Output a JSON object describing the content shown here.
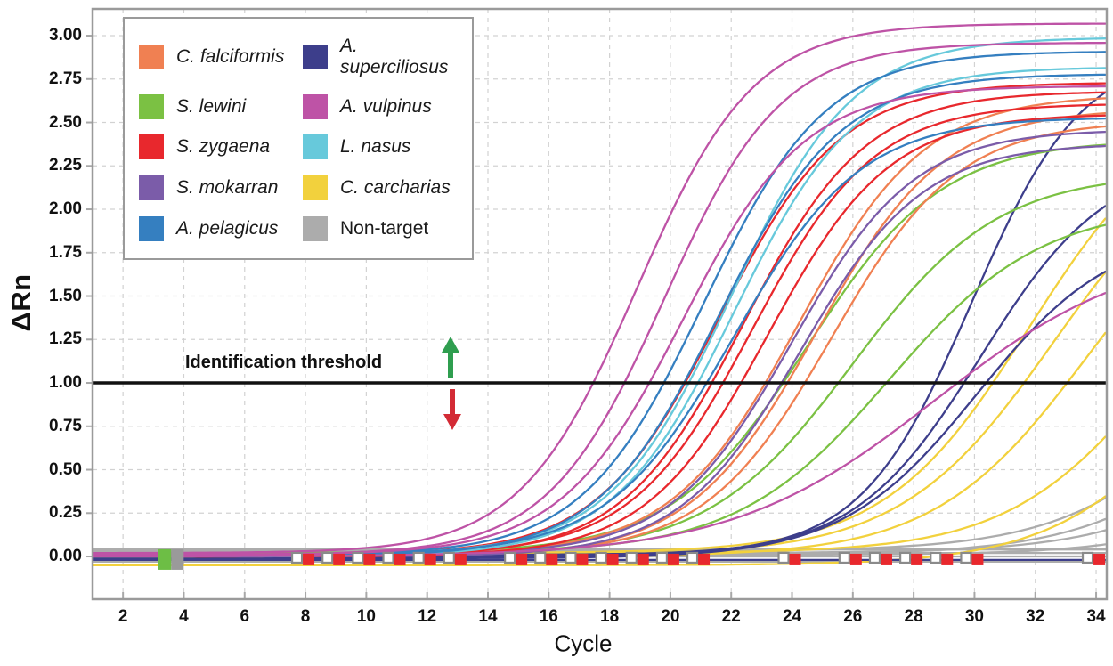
{
  "chart_data": {
    "type": "line",
    "title": "",
    "xlabel": "Cycle",
    "ylabel": "ΔRn",
    "xlim": [
      1.0,
      34.35
    ],
    "ylim": [
      -0.246,
      3.154
    ],
    "x_ticks": [
      2,
      4,
      6,
      8,
      10,
      12,
      14,
      16,
      18,
      20,
      22,
      24,
      26,
      28,
      30,
      32,
      34
    ],
    "y_ticks": [
      0.0,
      0.25,
      0.5,
      0.75,
      1.0,
      1.25,
      1.5,
      1.75,
      2.0,
      2.25,
      2.5,
      2.75,
      3.0
    ],
    "grid": true,
    "grid_color": "#d2d2d2",
    "frame_color": "#9a9a9a",
    "threshold": {
      "value": 1.0,
      "label": "Identification threshold",
      "color": "#111111"
    },
    "arrows": {
      "up_color": "#2f9e4f",
      "down_color": "#d32b35"
    },
    "legend": {
      "position": "top-left",
      "entries": [
        {
          "label": "C. falciformis",
          "color": "#F08052",
          "italic": true
        },
        {
          "label": "A. superciliosus",
          "color": "#3D3E8B",
          "italic": true
        },
        {
          "label": "S. lewini",
          "color": "#7BC143",
          "italic": true
        },
        {
          "label": "A. vulpinus",
          "color": "#BE53A6",
          "italic": true
        },
        {
          "label": "S. zygaena",
          "color": "#E8282D",
          "italic": true
        },
        {
          "label": "L. nasus",
          "color": "#67C9DB",
          "italic": true
        },
        {
          "label": "S. mokarran",
          "color": "#7B5CA9",
          "italic": true
        },
        {
          "label": "C. carcharias",
          "color": "#F2D13D",
          "italic": true
        },
        {
          "label": "A. pelagicus",
          "color": "#357FC0",
          "italic": true
        },
        {
          "label": "Non-target",
          "color": "#ACACAC",
          "italic": false
        }
      ]
    },
    "series": [
      {
        "name": "Non-target",
        "color": "#ACACAC",
        "curves": [
          {
            "base": 0.03,
            "m": 38.8,
            "r": 0.38,
            "p": 2.0
          },
          {
            "base": 0.01,
            "m": 40.0,
            "r": 0.38,
            "p": 2.0
          },
          {
            "base": 0.02,
            "m": 41.3,
            "r": 0.38,
            "p": 2.0
          },
          {
            "base": 0.04,
            "m": 0,
            "r": 0,
            "p": 0
          },
          {
            "base": 0.02,
            "m": 0,
            "r": 0,
            "p": 0
          },
          {
            "base": 0.0,
            "m": 0,
            "r": 0,
            "p": 0
          },
          {
            "base": -0.03,
            "m": 0,
            "r": 0,
            "p": 0
          },
          {
            "base": 0.01,
            "m": 43.0,
            "r": 0.4,
            "p": 2.0
          }
        ]
      },
      {
        "name": "C. carcharias",
        "color": "#F2D13D",
        "curves": [
          {
            "base": 0.02,
            "m": 31.8,
            "r": 0.42,
            "p": 2.6
          },
          {
            "base": 0.01,
            "m": 32.6,
            "r": 0.4,
            "p": 2.45
          },
          {
            "base": 0.0,
            "m": 33.7,
            "r": 0.4,
            "p": 2.3
          },
          {
            "base": 0.02,
            "m": 36.2,
            "r": 0.4,
            "p": 2.1
          },
          {
            "base": -0.05,
            "m": 37.8,
            "r": 0.4,
            "p": 2.0
          }
        ]
      },
      {
        "name": "A. superciliosus",
        "color": "#3D3E8B",
        "curves": [
          {
            "base": 0.01,
            "m": 29.9,
            "r": 0.55,
            "p": 2.9
          },
          {
            "base": 0.0,
            "m": 30.2,
            "r": 0.48,
            "p": 2.3
          },
          {
            "base": -0.01,
            "m": 30.1,
            "r": 0.45,
            "p": 1.9
          },
          {
            "base": -0.02,
            "m": 0,
            "r": 0,
            "p": 0
          }
        ]
      },
      {
        "name": "S. lewini",
        "color": "#7BC143",
        "curves": [
          {
            "base": 0.02,
            "m": 24.5,
            "r": 0.45,
            "p": 2.38
          },
          {
            "base": 0.01,
            "m": 26.0,
            "r": 0.42,
            "p": 2.2
          },
          {
            "base": 0.02,
            "m": 27.2,
            "r": 0.4,
            "p": 2.0
          }
        ]
      },
      {
        "name": "C. falciformis",
        "color": "#F08052",
        "curves": [
          {
            "base": 0.01,
            "m": 24.2,
            "r": 0.48,
            "p": 2.65
          },
          {
            "base": 0.0,
            "m": 24.8,
            "r": 0.48,
            "p": 2.58
          },
          {
            "base": 0.01,
            "m": 25.3,
            "r": 0.48,
            "p": 2.5
          }
        ]
      },
      {
        "name": "S. mokarran",
        "color": "#7B5CA9",
        "curves": [
          {
            "base": 0.01,
            "m": 24.0,
            "r": 0.5,
            "p": 2.45
          },
          {
            "base": 0.0,
            "m": 24.3,
            "r": 0.5,
            "p": 2.38
          }
        ]
      },
      {
        "name": "S. zygaena",
        "color": "#E8282D",
        "curves": [
          {
            "base": 0.01,
            "m": 21.6,
            "r": 0.5,
            "p": 2.72
          },
          {
            "base": 0.0,
            "m": 22.4,
            "r": 0.5,
            "p": 2.68
          },
          {
            "base": 0.01,
            "m": 22.7,
            "r": 0.5,
            "p": 2.6
          },
          {
            "base": 0.0,
            "m": 23.2,
            "r": 0.5,
            "p": 2.55
          }
        ]
      },
      {
        "name": "L. nasus",
        "color": "#67C9DB",
        "curves": [
          {
            "base": 0.01,
            "m": 22.0,
            "r": 0.5,
            "p": 2.98
          },
          {
            "base": 0.0,
            "m": 22.1,
            "r": 0.5,
            "p": 2.82
          }
        ]
      },
      {
        "name": "A. pelagicus",
        "color": "#357FC0",
        "curves": [
          {
            "base": 0.01,
            "m": 21.1,
            "r": 0.5,
            "p": 2.9
          },
          {
            "base": 0.0,
            "m": 21.6,
            "r": 0.5,
            "p": 2.78
          },
          {
            "base": 0.01,
            "m": 22.1,
            "r": 0.48,
            "p": 2.52
          }
        ]
      },
      {
        "name": "A. vulpinus",
        "color": "#BE53A6",
        "curves": [
          {
            "base": 0.02,
            "m": 18.9,
            "r": 0.52,
            "p": 3.05
          },
          {
            "base": 0.01,
            "m": 19.8,
            "r": 0.52,
            "p": 2.95
          },
          {
            "base": 0.01,
            "m": 20.4,
            "r": 0.5,
            "p": 2.7
          },
          {
            "base": 0.0,
            "m": 28.7,
            "r": 0.3,
            "p": 1.8
          }
        ]
      }
    ],
    "threshold_crossings": {
      "A. vulpinus": [
        17.5,
        18.5,
        19.3,
        29.4
      ],
      "A. pelagicus": [
        19.8,
        20.4,
        21.2
      ],
      "L. nasus": [
        20.6,
        20.9
      ],
      "S. zygaena": [
        20.5,
        21.4,
        21.8,
        22.3
      ],
      "S. mokarran": [
        23.3,
        23.6
      ],
      "C. falciformis": [
        23.2,
        23.8,
        24.4
      ],
      "S. lewini": [
        23.8,
        25.6,
        27.2
      ],
      "A. superciliosus": [
        28.7,
        29.5,
        30.2
      ],
      "C. carcharias": [
        30.7,
        31.7,
        33.0
      ]
    },
    "baseline_markers": {
      "value": -0.02,
      "flagged_cycles": [
        8,
        9,
        10,
        11,
        12,
        13,
        15,
        16,
        17,
        18,
        19,
        20,
        21,
        24,
        26,
        27,
        28,
        29,
        30,
        34
      ],
      "pair": [
        {
          "shape": "open-square",
          "color": "#8a8a8a"
        },
        {
          "shape": "filled-square",
          "color": "#E8282D"
        }
      ],
      "start_marker": {
        "cycle": 3,
        "colors": [
          "#6DBE45",
          "#9A9A9A"
        ]
      }
    }
  }
}
